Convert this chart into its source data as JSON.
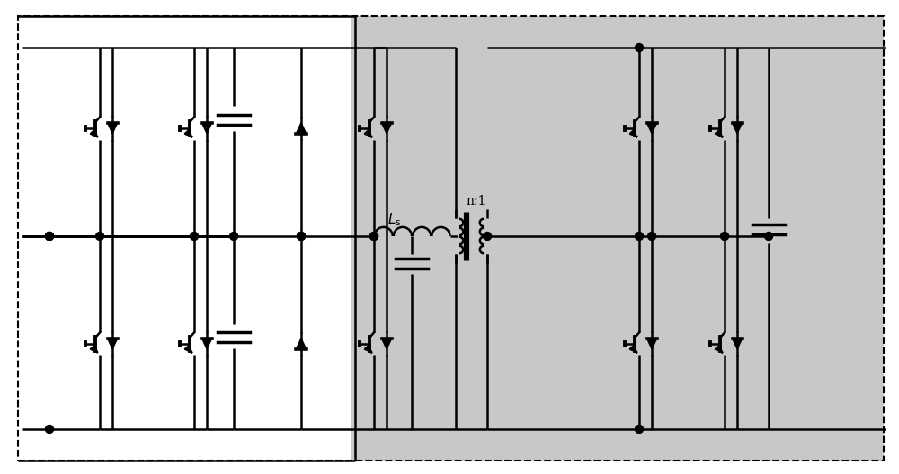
{
  "fig_w": 10.0,
  "fig_h": 5.28,
  "dpi": 100,
  "bg": "#ffffff",
  "gray": "#c8c8c8",
  "blk": "#000000",
  "lw": 1.8,
  "dlw": 1.5,
  "ls_label": "$L_{\\mathrm{s}}$",
  "n1_label": "n:1",
  "xmin": 0,
  "xmax": 100,
  "ymin": 0,
  "ymax": 52.8
}
